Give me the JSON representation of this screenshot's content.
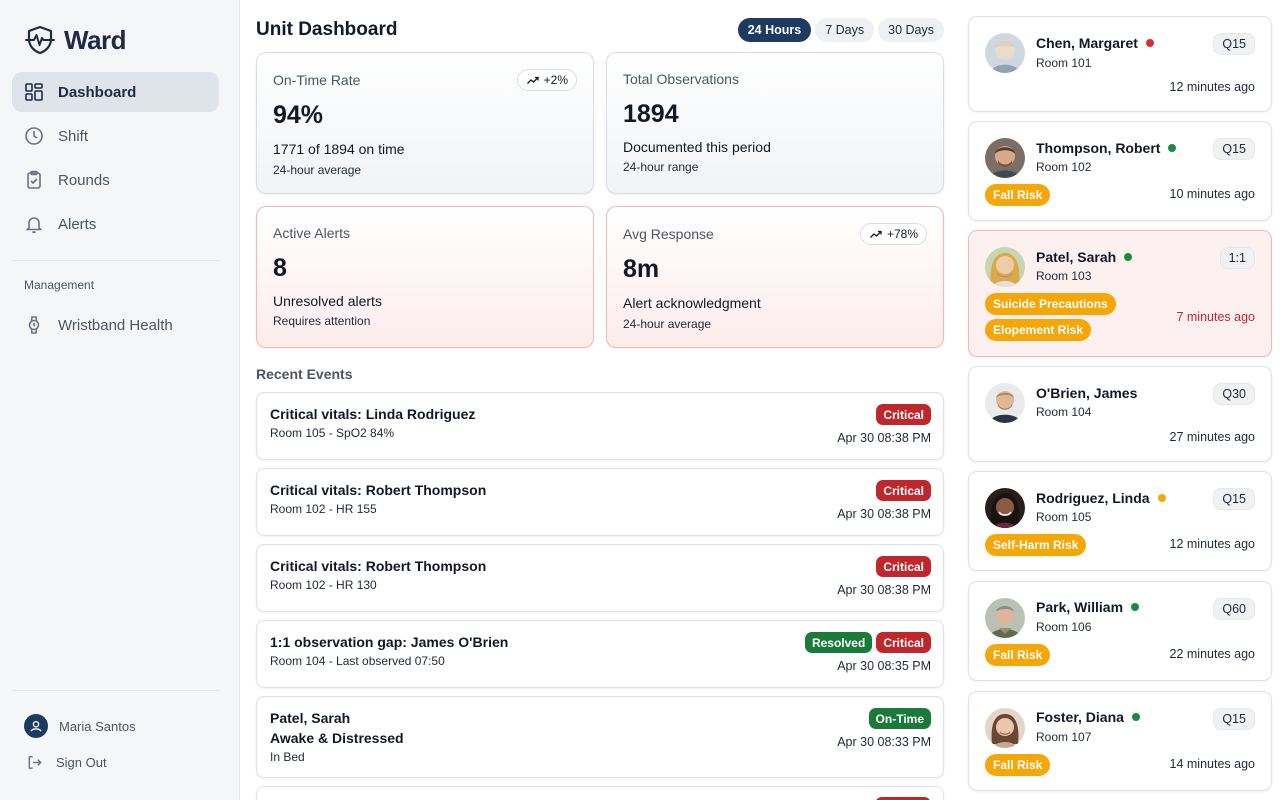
{
  "app": {
    "name": "Ward"
  },
  "sidebar": {
    "items": [
      {
        "label": "Dashboard",
        "icon": "grid-icon",
        "active": true
      },
      {
        "label": "Shift",
        "icon": "clock-icon"
      },
      {
        "label": "Rounds",
        "icon": "clipboard-check-icon"
      },
      {
        "label": "Alerts",
        "icon": "bell-icon"
      }
    ],
    "section_label": "Management",
    "management_items": [
      {
        "label": "Wristband Health",
        "icon": "watch-icon"
      }
    ],
    "user_name": "Maria Santos",
    "sign_out": "Sign Out"
  },
  "main": {
    "title": "Unit Dashboard",
    "ranges": [
      "24 Hours",
      "7 Days",
      "30 Days"
    ],
    "active_range": "24 Hours",
    "stats": [
      {
        "label": "On-Time Rate",
        "value": "94%",
        "sub": "1771 of 1894 on time",
        "note": "24-hour average",
        "trend": "+2%"
      },
      {
        "label": "Total Observations",
        "value": "1894",
        "sub": "Documented this period",
        "note": "24-hour range"
      },
      {
        "label": "Active Alerts",
        "value": "8",
        "sub": "Unresolved alerts",
        "note": "Requires attention"
      },
      {
        "label": "Avg Response",
        "value": "8m",
        "sub": "Alert acknowledgment",
        "note": "24-hour average",
        "trend": "+78%"
      }
    ],
    "recent_title": "Recent Events",
    "events": [
      {
        "title": "Critical vitals: Linda Rodriguez",
        "sub": "Room 105 - SpO2 84%",
        "badges": [
          "Critical"
        ],
        "time": "Apr 30 08:38 PM"
      },
      {
        "title": "Critical vitals: Robert Thompson",
        "sub": "Room 102 - HR 155",
        "badges": [
          "Critical"
        ],
        "time": "Apr 30 08:38 PM"
      },
      {
        "title": "Critical vitals: Robert Thompson",
        "sub": "Room 102 - HR 130",
        "badges": [
          "Critical"
        ],
        "time": "Apr 30 08:38 PM"
      },
      {
        "title": "1:1 observation gap: James O'Brien",
        "sub": "Room 104 - Last observed 07:50",
        "badges": [
          "Resolved",
          "Critical"
        ],
        "time": "Apr 30 08:35 PM"
      },
      {
        "title": "Patel, Sarah",
        "line2": "Awake & Distressed",
        "sub": "In Bed",
        "badges": [
          "On-Time"
        ],
        "time": "Apr 30 08:33 PM"
      }
    ]
  },
  "patients": [
    {
      "name": "Chen, Margaret",
      "room": "Room 101",
      "freq": "Q15",
      "status_color": "#d32f2f",
      "tags": [],
      "ago": "12 minutes ago"
    },
    {
      "name": "Thompson, Robert",
      "room": "Room 102",
      "freq": "Q15",
      "status_color": "#1b8a3e",
      "tags": [
        "Fall Risk"
      ],
      "ago": "10 minutes ago"
    },
    {
      "name": "Patel, Sarah",
      "room": "Room 103",
      "freq": "1:1",
      "status_color": "#1b8a3e",
      "tags": [
        "Suicide Precautions",
        "Elopement Risk"
      ],
      "ago": "7 minutes ago",
      "highlight": true
    },
    {
      "name": "O'Brien, James",
      "room": "Room 104",
      "freq": "Q30",
      "status_color": "",
      "tags": [],
      "ago": "27 minutes ago"
    },
    {
      "name": "Rodriguez, Linda",
      "room": "Room 105",
      "freq": "Q15",
      "status_color": "#f5a70a",
      "tags": [
        "Self-Harm Risk"
      ],
      "ago": "12 minutes ago"
    },
    {
      "name": "Park, William",
      "room": "Room 106",
      "freq": "Q60",
      "status_color": "#1b8a3e",
      "tags": [
        "Fall Risk"
      ],
      "ago": "22 minutes ago"
    },
    {
      "name": "Foster, Diana",
      "room": "Room 107",
      "freq": "Q15",
      "status_color": "#1b8a3e",
      "tags": [
        "Fall Risk"
      ],
      "ago": "14 minutes ago"
    }
  ]
}
